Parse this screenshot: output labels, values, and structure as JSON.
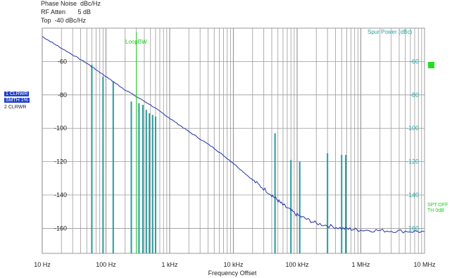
{
  "header": {
    "line1": "Phase Noise  dBc/Hz",
    "line2": "RF Atten       5 dB",
    "line3": "Top  -40 dBc/Hz"
  },
  "side": {
    "line1": "1 CLRWR",
    "line2": "SMTH 1%",
    "line3": "2 CLRWR"
  },
  "spot": {
    "line1": "SPT OFF",
    "line2": "TH 0dB"
  },
  "colors": {
    "trace": "#2030a8",
    "spur": "#2a9a9a",
    "grid": "#9a9a9a",
    "marker": "#22cc22"
  },
  "chart_data": {
    "type": "line",
    "xscale": "log",
    "xlim": [
      10,
      10000000
    ],
    "ylim": [
      -175,
      -40
    ],
    "xlabel": "Frequency Offset",
    "x_ticks": [
      {
        "value": 10,
        "label": "10 Hz"
      },
      {
        "value": 100,
        "label": "100 Hz"
      },
      {
        "value": 1000,
        "label": "1 kHz"
      },
      {
        "value": 10000,
        "label": "10 kHz"
      },
      {
        "value": 100000,
        "label": "100 kHz"
      },
      {
        "value": 1000000,
        "label": "1 MHz"
      },
      {
        "value": 10000000,
        "label": "10 MHz"
      }
    ],
    "y_ticks": [
      -60,
      -80,
      -100,
      -120,
      -140,
      -160
    ],
    "right_axis_title": "Spur Power (dBc)",
    "marker_line": {
      "x": 300,
      "label": "LoopBW"
    },
    "series": [
      {
        "kind": "trace",
        "points": [
          [
            10,
            -45
          ],
          [
            20,
            -52
          ],
          [
            50,
            -61
          ],
          [
            100,
            -69
          ],
          [
            200,
            -77
          ],
          [
            500,
            -86
          ],
          [
            1000,
            -94
          ],
          [
            2000,
            -102
          ],
          [
            5000,
            -112
          ],
          [
            10000,
            -121
          ],
          [
            20000,
            -131
          ],
          [
            40000,
            -140
          ],
          [
            60000,
            -146
          ],
          [
            100000,
            -152
          ],
          [
            200000,
            -157
          ],
          [
            500000,
            -160
          ],
          [
            1000000,
            -161
          ],
          [
            3000000,
            -161.5
          ],
          [
            10000000,
            -162
          ]
        ]
      },
      {
        "kind": "spurs",
        "points": [
          [
            60,
            -62
          ],
          [
            90,
            -69
          ],
          [
            130,
            -72
          ],
          [
            250,
            -84
          ],
          [
            330,
            -85
          ],
          [
            380,
            -86
          ],
          [
            430,
            -89
          ],
          [
            480,
            -91
          ],
          [
            540,
            -92
          ],
          [
            600,
            -93
          ],
          [
            45000,
            -103
          ],
          [
            80000,
            -119
          ],
          [
            110000,
            -120
          ],
          [
            300000,
            -115
          ],
          [
            500000,
            -116
          ],
          [
            580000,
            -116
          ]
        ]
      }
    ]
  }
}
